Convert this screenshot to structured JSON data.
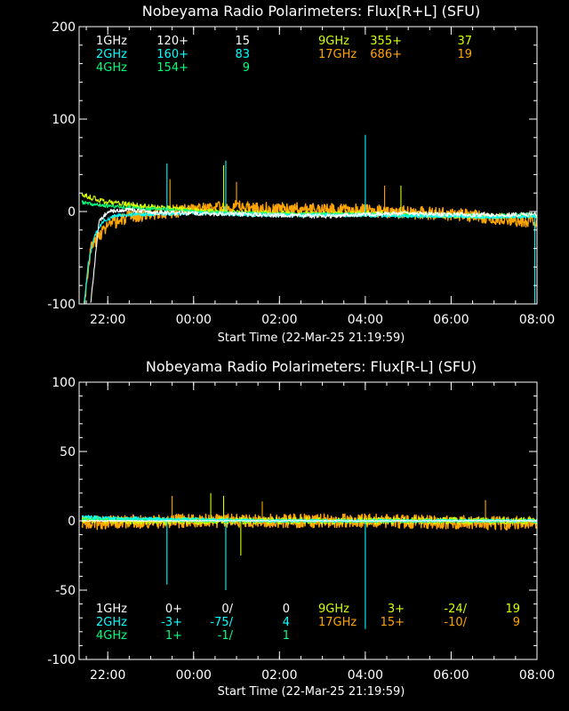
{
  "chart_data": [
    {
      "type": "line",
      "title": "Nobeyama Radio Polarimeters: Flux[R+L] (SFU)",
      "xlabel": "Start Time (22-Mar-25 21:19:59)",
      "ylabel": "",
      "x_unit": "hour",
      "xlim": [
        21.333,
        32.0
      ],
      "ylim": [
        -100,
        200
      ],
      "y_ticks": [
        -100,
        0,
        100,
        200
      ],
      "x_ticks": [
        {
          "x": 22,
          "label": "22:00"
        },
        {
          "x": 24,
          "label": "00:00"
        },
        {
          "x": 26,
          "label": "02:00"
        },
        {
          "x": 28,
          "label": "04:00"
        },
        {
          "x": 30,
          "label": "06:00"
        },
        {
          "x": 32,
          "label": "08:00"
        }
      ],
      "grid": false,
      "legend": [
        {
          "freq": "1GHz",
          "base": "120+",
          "value": "15",
          "color": "#ffffff"
        },
        {
          "freq": "2GHz",
          "base": "160+",
          "value": "83",
          "color": "#00ffff"
        },
        {
          "freq": "4GHz",
          "base": "154+",
          "value": "9",
          "color": "#00ff7f"
        },
        {
          "freq": "9GHz",
          "base": "355+",
          "value": "37",
          "color": "#d4ff00"
        },
        {
          "freq": "17GHz",
          "base": "686+",
          "value": "19",
          "color": "#ffa500"
        }
      ],
      "series": [
        {
          "name": "17GHz",
          "color": "#ffa500",
          "x": [
            21.45,
            21.6,
            21.8,
            22.0,
            22.5,
            23.0,
            24.0,
            25.0,
            26.0,
            27.0,
            28.0,
            29.0,
            30.0,
            31.0,
            32.0
          ],
          "y": [
            -100,
            -40,
            -25,
            -15,
            -6,
            -2,
            2,
            5,
            3,
            2,
            1,
            -1,
            -3,
            -7,
            -12
          ],
          "noise": 7,
          "spikes": [
            {
              "x": 23.45,
              "y": 35
            },
            {
              "x": 25.0,
              "y": 32
            },
            {
              "x": 28.45,
              "y": 28
            }
          ]
        },
        {
          "name": "9GHz",
          "color": "#d4ff00",
          "x": [
            21.4,
            21.6,
            22.0,
            23.0,
            24.0,
            25.0,
            26.0,
            27.0,
            28.0,
            29.0,
            30.0,
            31.0,
            32.0
          ],
          "y": [
            18,
            15,
            10,
            5,
            1,
            -1,
            -2,
            -3,
            -2,
            -3,
            -4,
            -5,
            -4
          ],
          "noise": 3,
          "spikes": [
            {
              "x": 24.7,
              "y": 50
            },
            {
              "x": 28.83,
              "y": 28
            }
          ]
        },
        {
          "name": "4GHz",
          "color": "#00ff7f",
          "x": [
            21.4,
            21.6,
            22.0,
            23.0,
            24.0,
            25.0,
            26.0,
            27.0,
            28.0,
            29.0,
            30.0,
            31.0,
            32.0
          ],
          "y": [
            10,
            8,
            6,
            3,
            0,
            -2,
            -3,
            -3,
            -3,
            -4,
            -4,
            -5,
            -3
          ],
          "noise": 2,
          "spikes": []
        },
        {
          "name": "2GHz",
          "color": "#00ffff",
          "x": [
            21.45,
            21.55,
            21.7,
            21.9,
            22.2,
            23.0,
            24.0,
            25.0,
            26.0,
            27.0,
            28.0,
            29.0,
            30.0,
            31.0,
            32.0
          ],
          "y": [
            -100,
            -55,
            -25,
            -10,
            -4,
            -3,
            -2,
            -3,
            -4,
            -4,
            -4,
            -5,
            -5,
            -6,
            -5
          ],
          "noise": 2,
          "spikes": [
            {
              "x": 23.38,
              "y": 52
            },
            {
              "x": 24.75,
              "y": 55
            },
            {
              "x": 28.0,
              "y": 83
            },
            {
              "x": 31.95,
              "y": -100
            }
          ]
        },
        {
          "name": "1GHz",
          "color": "#ffffff",
          "x": [
            21.6,
            21.8,
            22.0,
            22.5,
            23.0,
            24.0,
            25.0,
            26.0,
            27.0,
            28.0,
            29.0,
            30.0,
            31.0,
            32.0
          ],
          "y": [
            -100,
            -10,
            0,
            2,
            -1,
            -2,
            -3,
            -4,
            -5,
            -3,
            -2,
            -3,
            -4,
            -3
          ],
          "noise": 2.5,
          "spikes": []
        }
      ]
    },
    {
      "type": "line",
      "title": "Nobeyama Radio Polarimeters: Flux[R-L] (SFU)",
      "xlabel": "Start Time (22-Mar-25 21:19:59)",
      "ylabel": "",
      "x_unit": "hour",
      "xlim": [
        21.333,
        32.0
      ],
      "ylim": [
        -100,
        100
      ],
      "y_ticks": [
        -100,
        -50,
        0,
        50,
        100
      ],
      "x_ticks": [
        {
          "x": 22,
          "label": "22:00"
        },
        {
          "x": 24,
          "label": "00:00"
        },
        {
          "x": 26,
          "label": "02:00"
        },
        {
          "x": 28,
          "label": "04:00"
        },
        {
          "x": 30,
          "label": "06:00"
        },
        {
          "x": 32,
          "label": "08:00"
        }
      ],
      "grid": false,
      "legend": [
        {
          "freq": "1GHz",
          "base": "0+",
          "ratio": "0/",
          "value": "0",
          "color": "#ffffff"
        },
        {
          "freq": "2GHz",
          "base": "-3+",
          "ratio": "-75/",
          "value": "4",
          "color": "#00ffff"
        },
        {
          "freq": "4GHz",
          "base": "1+",
          "ratio": "-1/",
          "value": "1",
          "color": "#00ff7f"
        },
        {
          "freq": "9GHz",
          "base": "3+",
          "ratio": "-24/",
          "value": "19",
          "color": "#d4ff00"
        },
        {
          "freq": "17GHz",
          "base": "15+",
          "ratio": "-10/",
          "value": "9",
          "color": "#ffa500"
        }
      ],
      "series": [
        {
          "name": "17GHz",
          "color": "#ffa500",
          "x": [
            21.4,
            22.0,
            24.0,
            26.0,
            28.0,
            30.0,
            32.0
          ],
          "y": [
            -2,
            -1,
            0,
            0,
            0,
            -1,
            -2
          ],
          "noise": 5,
          "spikes": [
            {
              "x": 23.5,
              "y": 18
            },
            {
              "x": 25.6,
              "y": 14
            },
            {
              "x": 30.8,
              "y": 15
            }
          ]
        },
        {
          "name": "9GHz",
          "color": "#d4ff00",
          "x": [
            21.4,
            22.0,
            24.0,
            26.0,
            28.0,
            30.0,
            32.0
          ],
          "y": [
            1,
            0,
            0,
            0,
            0,
            0,
            0
          ],
          "noise": 2.5,
          "spikes": [
            {
              "x": 24.4,
              "y": 20
            },
            {
              "x": 24.7,
              "y": 18
            },
            {
              "x": 25.1,
              "y": -25
            }
          ]
        },
        {
          "name": "4GHz",
          "color": "#00ff7f",
          "x": [
            21.4,
            22.0,
            24.0,
            26.0,
            28.0,
            30.0,
            32.0
          ],
          "y": [
            1,
            1,
            0,
            0,
            0,
            0,
            0
          ],
          "noise": 1,
          "spikes": []
        },
        {
          "name": "2GHz",
          "color": "#00ffff",
          "x": [
            21.4,
            22.0,
            24.0,
            26.0,
            28.0,
            30.0,
            32.0
          ],
          "y": [
            3,
            2,
            1,
            0,
            0,
            0,
            0
          ],
          "noise": 1.2,
          "spikes": [
            {
              "x": 23.38,
              "y": -46
            },
            {
              "x": 24.75,
              "y": -50
            },
            {
              "x": 28.0,
              "y": -78
            }
          ]
        },
        {
          "name": "1GHz",
          "color": "#ffffff",
          "x": [
            21.4,
            22.0,
            24.0,
            26.0,
            28.0,
            30.0,
            32.0
          ],
          "y": [
            0,
            0,
            0,
            0,
            0,
            0,
            0
          ],
          "noise": 0.4,
          "spikes": []
        }
      ]
    }
  ]
}
